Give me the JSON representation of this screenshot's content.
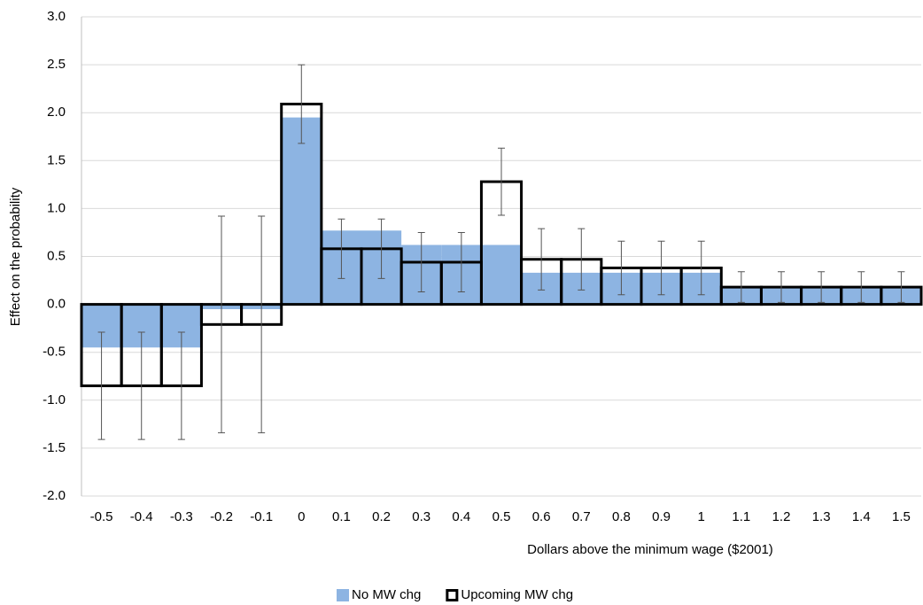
{
  "chart_data": {
    "type": "bar",
    "x_label": "Dollars above the minimum wage ($2001)",
    "y_label": "Effect on the probability",
    "categories": [
      "-0.5",
      "-0.4",
      "-0.3",
      "-0.2",
      "-0.1",
      "0",
      "0.1",
      "0.2",
      "0.3",
      "0.4",
      "0.5",
      "0.6",
      "0.7",
      "0.8",
      "0.9",
      "1",
      "1.1",
      "1.2",
      "1.3",
      "1.4",
      "1.5"
    ],
    "series": [
      {
        "name": "No MW chg",
        "color": "#8db4e2",
        "style": "filled",
        "values": [
          -0.45,
          -0.45,
          -0.45,
          -0.05,
          -0.05,
          1.95,
          0.77,
          0.77,
          0.62,
          0.62,
          0.62,
          0.33,
          0.33,
          0.33,
          0.33,
          0.33,
          0.17,
          0.17,
          0.17,
          0.17,
          0.17
        ]
      },
      {
        "name": "Upcoming MW chg",
        "color": "#000000",
        "style": "outline",
        "values": [
          -0.85,
          -0.85,
          -0.85,
          -0.21,
          -0.21,
          2.09,
          0.58,
          0.58,
          0.44,
          0.44,
          1.28,
          0.47,
          0.47,
          0.38,
          0.38,
          0.38,
          0.18,
          0.18,
          0.18,
          0.18,
          0.18
        ],
        "errors": [
          0.56,
          0.56,
          0.56,
          1.13,
          1.13,
          0.41,
          0.31,
          0.31,
          0.31,
          0.31,
          0.35,
          0.32,
          0.32,
          0.28,
          0.28,
          0.28,
          0.16,
          0.16,
          0.16,
          0.16,
          0.16
        ]
      }
    ],
    "ylim": [
      -2,
      3
    ],
    "yticks": [
      {
        "value": -2,
        "label": "-2.0"
      },
      -1.5,
      {
        "value": -1,
        "label": "-1.0"
      },
      -0.5,
      {
        "value": 0,
        "label": "0.0"
      },
      0.5,
      {
        "value": 1,
        "label": "1.0"
      },
      1.5,
      {
        "value": 2,
        "label": "2.0"
      },
      2.5,
      {
        "value": 3,
        "label": "3.0"
      }
    ],
    "grid": true,
    "legend": "bottom"
  }
}
